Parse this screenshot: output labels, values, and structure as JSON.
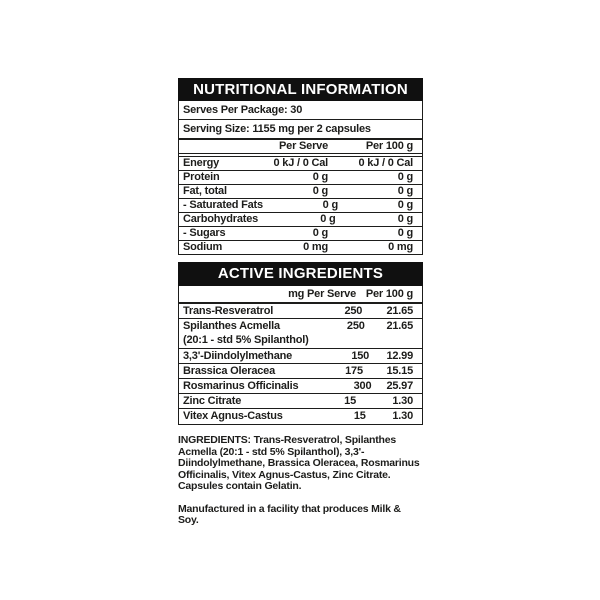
{
  "colors": {
    "background": "#ffffff",
    "bar_background": "#101010",
    "bar_text": "#ffffff",
    "text": "#1d1d1b",
    "border": "#1d1d1b"
  },
  "nutrition_panel": {
    "title": "NUTRITIONAL INFORMATION",
    "serves_per_package": "Serves Per Package: 30",
    "serving_size": "Serving Size: 1155 mg per 2 capsules",
    "col_per_serve": "Per Serve",
    "col_per_100g": "Per 100 g",
    "rows": [
      {
        "label": "Energy",
        "per_serve": "0 kJ / 0 Cal",
        "per_100g": "0 kJ / 0 Cal"
      },
      {
        "label": "Protein",
        "per_serve": "0 g",
        "per_100g": "0 g"
      },
      {
        "label": "Fat, total",
        "per_serve": "0 g",
        "per_100g": "0 g"
      },
      {
        "label": "- Saturated Fats",
        "per_serve": "0 g",
        "per_100g": "0 g"
      },
      {
        "label": "Carbohydrates",
        "per_serve": "0 g",
        "per_100g": "0 g"
      },
      {
        "label": "- Sugars",
        "per_serve": "0 g",
        "per_100g": "0 g"
      },
      {
        "label": "Sodium",
        "per_serve": "0 mg",
        "per_100g": "0 mg"
      }
    ]
  },
  "active_panel": {
    "title": "ACTIVE INGREDIENTS",
    "col_per_serve": "mg Per Serve",
    "col_per_100g": "Per 100 g",
    "rows": [
      {
        "label": "Trans-Resveratrol",
        "per_serve": "250",
        "per_100g": "21.65"
      },
      {
        "label": "Spilanthes Acmella",
        "sub": "(20:1 - std 5% Spilanthol)",
        "per_serve": "250",
        "per_100g": "21.65"
      },
      {
        "label": "3,3'-Diindolylmethane",
        "per_serve": "150",
        "per_100g": "12.99"
      },
      {
        "label": "Brassica Oleracea",
        "per_serve": "175",
        "per_100g": "15.15"
      },
      {
        "label": "Rosmarinus Officinalis",
        "per_serve": "300",
        "per_100g": "25.97"
      },
      {
        "label": "Zinc Citrate",
        "per_serve": "15",
        "per_100g": "1.30"
      },
      {
        "label": "Vitex Agnus-Castus",
        "per_serve": "15",
        "per_100g": "1.30"
      }
    ]
  },
  "footnotes": {
    "ingredients": "INGREDIENTS: Trans-Resveratrol, Spilanthes Acmella (20:1 - std 5% Spilanthol), 3,3'-Diindolylmethane, Brassica Oleracea, Rosmarinus Officinalis, Vitex Agnus-Castus, Zinc Citrate. Capsules contain Gelatin.",
    "allergen": "Manufactured in a facility that produces Milk & Soy."
  }
}
